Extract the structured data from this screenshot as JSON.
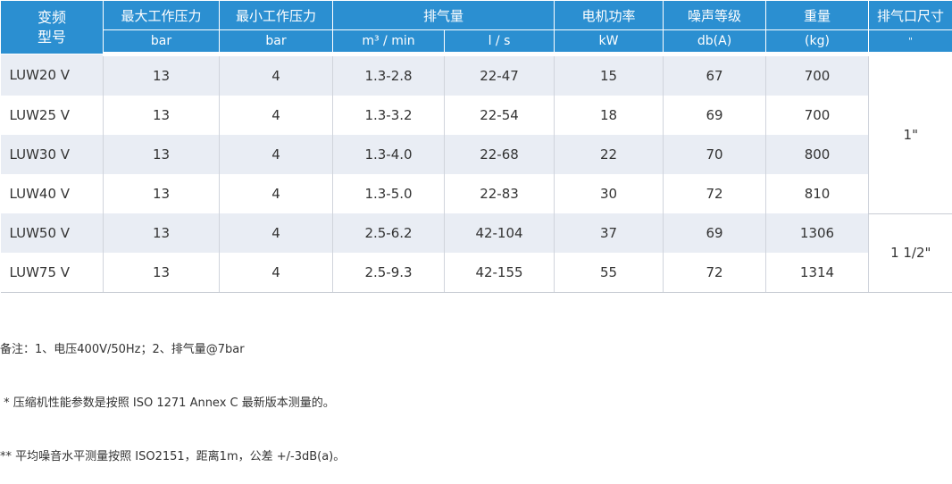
{
  "table": {
    "header": [
      "变频\n型号",
      "最大工作压力",
      "最小工作压力",
      "排气量",
      "电机功率",
      "噪声等级",
      "重量",
      "排气口尺寸"
    ],
    "units": [
      "bar",
      "bar",
      "m³ / min",
      "l / s",
      "kW",
      "db(A)",
      "(kg)",
      "\""
    ],
    "rows": [
      [
        "LUW20 V",
        "13",
        "4",
        "1.3-2.8",
        "22-47",
        "15",
        "67",
        "700"
      ],
      [
        "LUW25 V",
        "13",
        "4",
        "1.3-3.2",
        "22-54",
        "18",
        "69",
        "700"
      ],
      [
        "LUW30 V",
        "13",
        "4",
        "1.3-4.0",
        "22-68",
        "22",
        "70",
        "800"
      ],
      [
        "LUW40 V",
        "13",
        "4",
        "1.3-5.0",
        "22-83",
        "30",
        "72",
        "810"
      ],
      [
        "LUW50 V",
        "13",
        "4",
        "2.5-6.2",
        "42-104",
        "37",
        "69",
        "1306"
      ],
      [
        "LUW75 V",
        "13",
        "4",
        "2.5-9.3",
        "42-155",
        "55",
        "72",
        "1314"
      ]
    ],
    "outlet_sizes": [
      "1\"",
      "1 1/2\""
    ]
  },
  "notes": [
    "备注：1、电压400V/50Hz；2、排气量@7bar",
    " * 压缩机性能参数是按照 ISO 1271 Annex C 最新版本测量的。",
    "** 平均噪音水平测量按照 ISO2151，距离1m，公差 +/-3dB(a)。"
  ]
}
